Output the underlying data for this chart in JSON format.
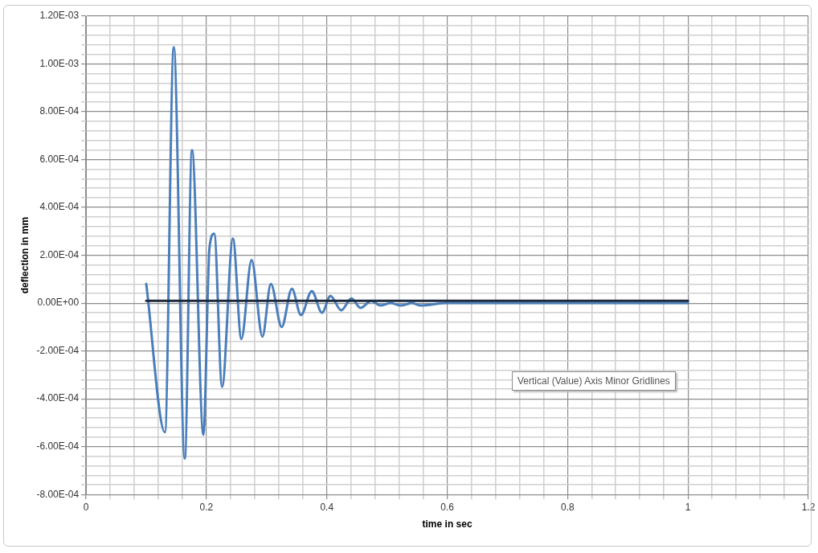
{
  "chart_data": {
    "type": "line",
    "xlabel": "time in sec",
    "ylabel": "deflection in mm",
    "annotations": [
      "Vertical (Value) Axis Minor Gridlines"
    ],
    "xlim": [
      0,
      1.2
    ],
    "xticks": [
      0,
      {
        "value": 0.04,
        "label": null
      },
      {
        "value": 0.08,
        "label": null
      },
      {
        "value": 0.12,
        "label": null
      },
      {
        "value": 0.16,
        "label": null
      },
      0.2,
      {
        "value": 0.24,
        "label": null
      },
      {
        "value": 0.28,
        "label": null
      },
      {
        "value": 0.32,
        "label": null
      },
      {
        "value": 0.36,
        "label": null
      },
      0.4,
      {
        "value": 0.44,
        "label": null
      },
      {
        "value": 0.48,
        "label": null
      },
      {
        "value": 0.52,
        "label": null
      },
      {
        "value": 0.56,
        "label": null
      },
      0.6,
      {
        "value": 0.64,
        "label": null
      },
      {
        "value": 0.68,
        "label": null
      },
      {
        "value": 0.72,
        "label": null
      },
      {
        "value": 0.76,
        "label": null
      },
      0.8,
      {
        "value": 0.84,
        "label": null
      },
      {
        "value": 0.88,
        "label": null
      },
      {
        "value": 0.92,
        "label": null
      },
      {
        "value": 0.96,
        "label": null
      },
      1,
      {
        "value": 1.04,
        "label": null
      },
      {
        "value": 1.08,
        "label": null
      },
      {
        "value": 1.12,
        "label": null
      },
      {
        "value": 1.16,
        "label": null
      },
      1.2
    ],
    "ylim": [
      -0.0008,
      0.0012
    ],
    "yticks": [
      {
        "value": -0.0008,
        "label": "-8.00E-04"
      },
      {
        "value": -0.00076,
        "label": null
      },
      {
        "value": -0.00072,
        "label": null
      },
      {
        "value": -0.00068,
        "label": null
      },
      {
        "value": -0.00064,
        "label": null
      },
      {
        "value": -0.0006,
        "label": "-6.00E-04"
      },
      {
        "value": -0.00056,
        "label": null
      },
      {
        "value": -0.00052,
        "label": null
      },
      {
        "value": -0.00048,
        "label": null
      },
      {
        "value": -0.00044,
        "label": null
      },
      {
        "value": -0.0004,
        "label": "-4.00E-04"
      },
      {
        "value": -0.00036,
        "label": null
      },
      {
        "value": -0.00032,
        "label": null
      },
      {
        "value": -0.00028,
        "label": null
      },
      {
        "value": -0.00024,
        "label": null
      },
      {
        "value": -0.0002,
        "label": "-2.00E-04"
      },
      {
        "value": -0.00016,
        "label": null
      },
      {
        "value": -0.00012,
        "label": null
      },
      {
        "value": -8e-05,
        "label": null
      },
      {
        "value": -4e-05,
        "label": null
      },
      {
        "value": 0,
        "label": "0.00E+00"
      },
      {
        "value": 4e-05,
        "label": null
      },
      {
        "value": 8e-05,
        "label": null
      },
      {
        "value": 0.00012,
        "label": null
      },
      {
        "value": 0.00016,
        "label": null
      },
      {
        "value": 0.0002,
        "label": "2.00E-04"
      },
      {
        "value": 0.00024,
        "label": null
      },
      {
        "value": 0.00028,
        "label": null
      },
      {
        "value": 0.00032,
        "label": null
      },
      {
        "value": 0.00036,
        "label": null
      },
      {
        "value": 0.0004,
        "label": "4.00E-04"
      },
      {
        "value": 0.00044,
        "label": null
      },
      {
        "value": 0.00048,
        "label": null
      },
      {
        "value": 0.00052,
        "label": null
      },
      {
        "value": 0.00056,
        "label": null
      },
      {
        "value": 0.0006,
        "label": "6.00E-04"
      },
      {
        "value": 0.00064,
        "label": null
      },
      {
        "value": 0.00068,
        "label": null
      },
      {
        "value": 0.00072,
        "label": null
      },
      {
        "value": 0.00076,
        "label": null
      },
      {
        "value": 0.0008,
        "label": "8.00E-04"
      },
      {
        "value": 0.00084,
        "label": null
      },
      {
        "value": 0.00088,
        "label": null
      },
      {
        "value": 0.00092,
        "label": null
      },
      {
        "value": 0.00096,
        "label": null
      },
      {
        "value": 0.001,
        "label": "1.00E-03"
      },
      {
        "value": 0.00104,
        "label": null
      },
      {
        "value": 0.00108,
        "label": null
      },
      {
        "value": 0.00112,
        "label": null
      },
      {
        "value": 0.00116,
        "label": null
      },
      {
        "value": 0.0012,
        "label": "1.20E-03"
      }
    ],
    "grid": true,
    "legend": false,
    "marker": "none",
    "line_style": "solid",
    "series": [
      {
        "color": "#4a7ebb",
        "x": [
          0.1,
          0.131,
          0.1457,
          0.164,
          0.176,
          0.195,
          0.205,
          0.213,
          0.226,
          0.244,
          0.258,
          0.275,
          0.293,
          0.307,
          0.325,
          0.342,
          0.357,
          0.375,
          0.392,
          0.406,
          0.424,
          0.441,
          0.456,
          0.474,
          0.489,
          0.506,
          0.523,
          0.541,
          0.556,
          0.6,
          0.7,
          0.8,
          1
        ],
        "values": [
          8e-05,
          -0.00054,
          0.00107,
          -0.00065,
          0.00064,
          -0.00055,
          0.00023,
          0.00029,
          -0.00035,
          0.00027,
          -0.00015,
          0.00018,
          -0.00014,
          8e-05,
          -0.0001,
          6e-05,
          -5e-05,
          5e-05,
          -4e-05,
          3e-05,
          -3e-05,
          2e-05,
          -2e-05,
          1e-05,
          -1e-05,
          0,
          -1e-05,
          0,
          -1e-05,
          0,
          0,
          0,
          0
        ]
      },
      {
        "color": "#1c2a3c",
        "x": [
          0.1,
          1
        ],
        "values": [
          1e-05,
          1e-05
        ]
      }
    ]
  }
}
